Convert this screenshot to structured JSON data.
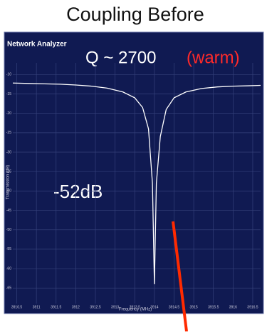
{
  "chart_data": {
    "type": "line",
    "title": "Coupling Before",
    "instrument": "Network Analyzer",
    "annotations": [
      "Q ~ 2700",
      "(warm)",
      "-52dB"
    ],
    "y_label": "Transmission (dB)",
    "x_label": "Frequency (MHz)",
    "x": [
      3910.4,
      3910.8,
      3911.2,
      3911.6,
      3912,
      3912.4,
      3912.8,
      3913.2,
      3913.5,
      3913.7,
      3913.85,
      3913.95,
      3914.0,
      3914.05,
      3914.15,
      3914.3,
      3914.5,
      3914.8,
      3915.2,
      3915.6,
      3916,
      3916.4,
      3916.7
    ],
    "series": [
      {
        "color": "#ffffff",
        "values": [
          -12.2,
          -12.3,
          -12.4,
          -12.5,
          -12.7,
          -13,
          -13.5,
          -14.5,
          -16,
          -18.5,
          -24,
          -38,
          -64,
          -38,
          -26,
          -19,
          -16,
          -14.5,
          -13.6,
          -13.2,
          -13,
          -12.9,
          -12.8
        ]
      }
    ],
    "xlim": [
      3910.4,
      3916.7
    ],
    "xticks": [
      3910.5,
      3911,
      3911.5,
      3912,
      3912.5,
      3913,
      3913.5,
      3914,
      3914.5,
      3915,
      3915.5,
      3916,
      3916.5
    ],
    "ylim": [
      -69,
      -7
    ],
    "yticks": [
      -10,
      -15,
      -20,
      -25,
      -30,
      -35,
      -40,
      -45,
      -50,
      -55,
      -60,
      -65
    ],
    "grid": true
  }
}
